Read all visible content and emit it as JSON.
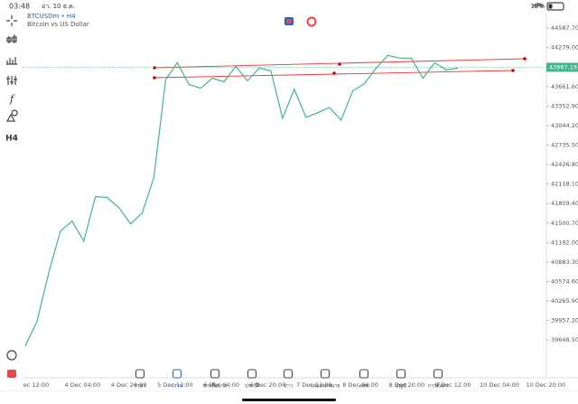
{
  "status_bar": {
    "time": "03:48",
    "date": "อา. 10 ธ.ค.",
    "battery": "19%"
  },
  "toolbar": {
    "timeframe": "H4"
  },
  "header": {
    "symbol": "BTCUSDm • H4",
    "description": "Bitcoin vs US Dollar"
  },
  "chart": {
    "type": "line",
    "color": "#3fb68b",
    "values": [
      39555,
      39945,
      40709,
      41372,
      41531,
      41214,
      41920,
      41906,
      41747,
      41488,
      41661,
      42223,
      43766,
      44040,
      43694,
      43636,
      43795,
      43737,
      43982,
      43751,
      43953,
      43910,
      43160,
      43622,
      43175,
      43247,
      43333,
      43131,
      43593,
      43708,
      43953,
      44155,
      44112,
      44112,
      43795,
      44040,
      43925,
      43953
    ],
    "ylim": [
      39050,
      44818
    ],
    "yticks": [
      {
        "value": 44587.7,
        "label": "44587.70"
      },
      {
        "value": 44279,
        "label": "44279.00"
      },
      {
        "value": 43661.6,
        "label": "43661.60"
      },
      {
        "value": 43352.9,
        "label": "43352.90"
      },
      {
        "value": 43044.2,
        "label": "43044.20"
      },
      {
        "value": 42735.5,
        "label": "42735.50"
      },
      {
        "value": 42426.8,
        "label": "42426.80"
      },
      {
        "value": 42118.1,
        "label": "42118.10"
      },
      {
        "value": 41809.4,
        "label": "41809.40"
      },
      {
        "value": 41500.7,
        "label": "41500.70"
      },
      {
        "value": 41192,
        "label": "41192.00"
      },
      {
        "value": 40883.3,
        "label": "40883.30"
      },
      {
        "value": 40574.6,
        "label": "40574.60"
      },
      {
        "value": 40265.9,
        "label": "40265.90"
      },
      {
        "value": 39957.2,
        "label": "39957.20"
      },
      {
        "value": 39648.5,
        "label": "39648.50"
      }
    ],
    "current_price": 43967.19,
    "x_labels": [
      "ec 12:00",
      "4 Dec 04:00",
      "4 Dec 20:00",
      "5 Dec 12:00",
      "6 Dec 04:00",
      "6 Dec 20:00",
      "7 Dec 12:00",
      "8 Dec 04:00",
      "8 Dec 20:00",
      "9 Dec 12:00",
      "10 Dec 04:00",
      "10 Dec 20:00"
    ]
  },
  "tabs": [
    "ราคา",
    "กราฟ",
    "การซื้อขาย",
    "ประวัติ",
    "ข่าว",
    "กล่องจดหมาย",
    "แชท",
    "บัญชี",
    "การตั้งค่า"
  ]
}
